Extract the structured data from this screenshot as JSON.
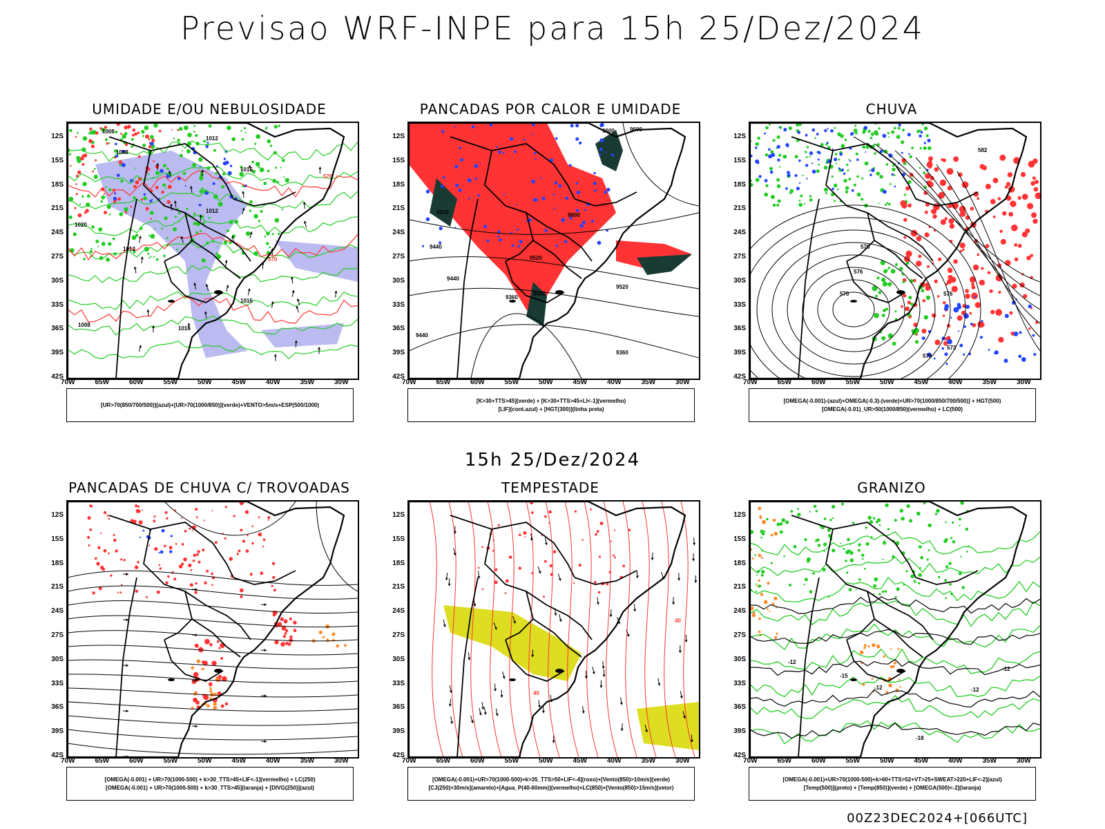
{
  "header": {
    "title": "Previsao WRF-INPE  para 15h 25/Dez/2024",
    "subtitle": "15h 25/Dez/2024",
    "footer": "00Z23DEC2024+[066UTC]"
  },
  "axes": {
    "lat_labels": [
      "12S",
      "15S",
      "18S",
      "21S",
      "24S",
      "27S",
      "30S",
      "33S",
      "36S",
      "39S",
      "42S"
    ],
    "lon_labels": [
      "70W",
      "65W",
      "60W",
      "55W",
      "50W",
      "45W",
      "40W",
      "35W",
      "30W"
    ]
  },
  "colors": {
    "green": "#22cc22",
    "red": "#ff3333",
    "blue": "#2244ff",
    "lavender": "#aaaaee",
    "darkteal": "#1a3a34",
    "yellow": "#dddd22",
    "orange": "#ff8822",
    "black": "#000000"
  },
  "panels": [
    {
      "id": "umidade",
      "title": "UMIDADE E/OU NEBULOSIDADE",
      "legend": [
        "[UR>70(850/700/500)](azul)+[UR>70(1000/850)](verde)+VENTO>5m/s+ESP(500/1000)"
      ],
      "contour_labels": [
        "1008",
        "1008",
        "1012",
        "1016",
        "1012",
        "1012",
        "1016",
        "1008",
        "1016",
        "570",
        "576",
        "1020"
      ]
    },
    {
      "id": "pancadas-calor",
      "title": "PANCADAS POR CALOR E UMIDADE",
      "legend": [
        "[K>30+TTS>45](verde) + [K>30+TTS>45+LI<-1](vermelho)",
        "[LIF](cont.azul) + [HGT(300)](linha preta)"
      ],
      "contour_labels": [
        "9600",
        "9600",
        "9520",
        "9600",
        "9440",
        "9520",
        "9440",
        "9360",
        "9440",
        "9520",
        "9360",
        "9440"
      ]
    },
    {
      "id": "chuva",
      "title": "CHUVA",
      "legend": [
        "[OMEGA(-0.001)-(azul)+OMEGA(-0.3)-(verde)+UR>70(1000/850/700/500)] + HGT(500)",
        "[OMEGA(-0.01)_UR>50(1000/850)(vermelho) + LC(500)"
      ],
      "contour_labels": [
        "582",
        "576",
        "570",
        "576",
        "573",
        "576",
        "579"
      ]
    },
    {
      "id": "trovoadas",
      "title": "PANCADAS DE CHUVA C/ TROVOADAS",
      "legend": [
        "[OMEGA(-0.001) + UR>70(1000-500) + k>30_TTS>45+LIF<-1](vermelho) + LC(250)",
        "[OMEGA(-0.001) + UR>70(1000-500) + k>30_TTS>45](laranja) + [DIVG(250)](azul)"
      ],
      "contour_labels": []
    },
    {
      "id": "tempestade",
      "title": "TEMPESTADE",
      "legend": [
        "[OMEGA(-0.001)+UR>70(1000-500)+k>35_TTS>50+LIF<-4](roxo)+[Vento(850)>10m/s](verde)",
        "[CJ(250)>30m/s](amarelo)+[Agua_P(40-60mm)](vermelho)+LC(850)+[Vento(850)>15m/s](vetor)"
      ],
      "contour_labels": [
        "40",
        "40"
      ]
    },
    {
      "id": "granizo",
      "title": "GRANIZO",
      "legend": [
        "[OMEGA(-0.001)+UR>70(1000-500)+k>60+TTS>52+VT>25+SWEAT>220+LIF<-2](azul)",
        "[Temp(500)](preto) + [Temp(850)](verde) + [OMEGA(500)<-2](laranja)"
      ],
      "contour_labels": [
        "-12",
        "-15",
        "-12",
        "-12",
        "-12",
        "-18"
      ]
    }
  ]
}
